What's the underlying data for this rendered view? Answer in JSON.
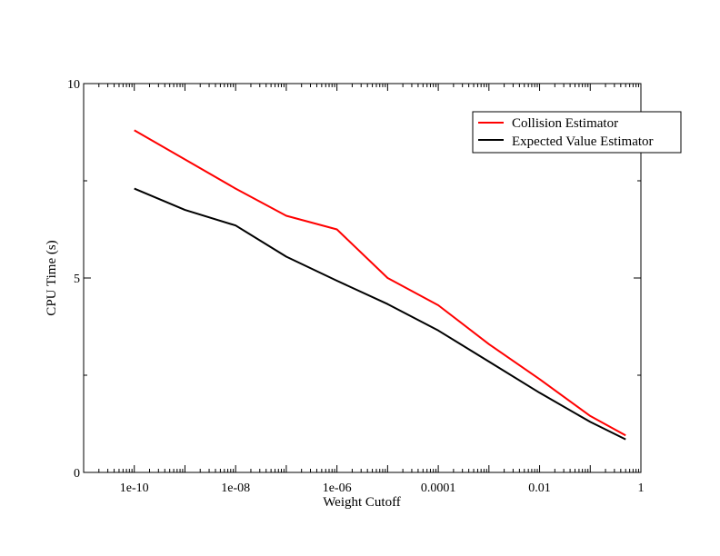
{
  "chart_data": {
    "type": "line",
    "title": "",
    "xlabel": "Weight Cutoff",
    "ylabel": "CPU Time (s)",
    "xscale": "log",
    "xlim": [
      1e-11,
      1
    ],
    "ylim": [
      0,
      10
    ],
    "x_ticks": [
      {
        "value": 1e-10,
        "label": "1e-10"
      },
      {
        "value": 1e-08,
        "label": "1e-08"
      },
      {
        "value": 1e-06,
        "label": "1e-06"
      },
      {
        "value": 0.0001,
        "label": "0.0001"
      },
      {
        "value": 0.01,
        "label": "0.01"
      },
      {
        "value": 1,
        "label": "1"
      }
    ],
    "y_ticks": [
      {
        "value": 0,
        "label": "0"
      },
      {
        "value": 5,
        "label": "5"
      },
      {
        "value": 10,
        "label": "10"
      }
    ],
    "grid": false,
    "legend_position": "top-right",
    "series": [
      {
        "name": "Collision Estimator",
        "color": "#ff0000",
        "x": [
          1e-10,
          1e-09,
          1e-08,
          1e-07,
          1e-06,
          1e-05,
          0.0001,
          0.001,
          0.01,
          0.1,
          0.5
        ],
        "y": [
          8.8,
          8.05,
          7.3,
          6.6,
          6.25,
          5.0,
          4.3,
          3.3,
          2.4,
          1.45,
          0.95
        ]
      },
      {
        "name": "Expected Value Estimator",
        "color": "#000000",
        "x": [
          1e-10,
          1e-09,
          1e-08,
          1e-07,
          1e-06,
          1e-05,
          0.0001,
          0.001,
          0.01,
          0.1,
          0.5
        ],
        "y": [
          7.3,
          6.75,
          6.35,
          5.55,
          4.93,
          4.33,
          3.65,
          2.85,
          2.05,
          1.3,
          0.85
        ]
      }
    ]
  }
}
